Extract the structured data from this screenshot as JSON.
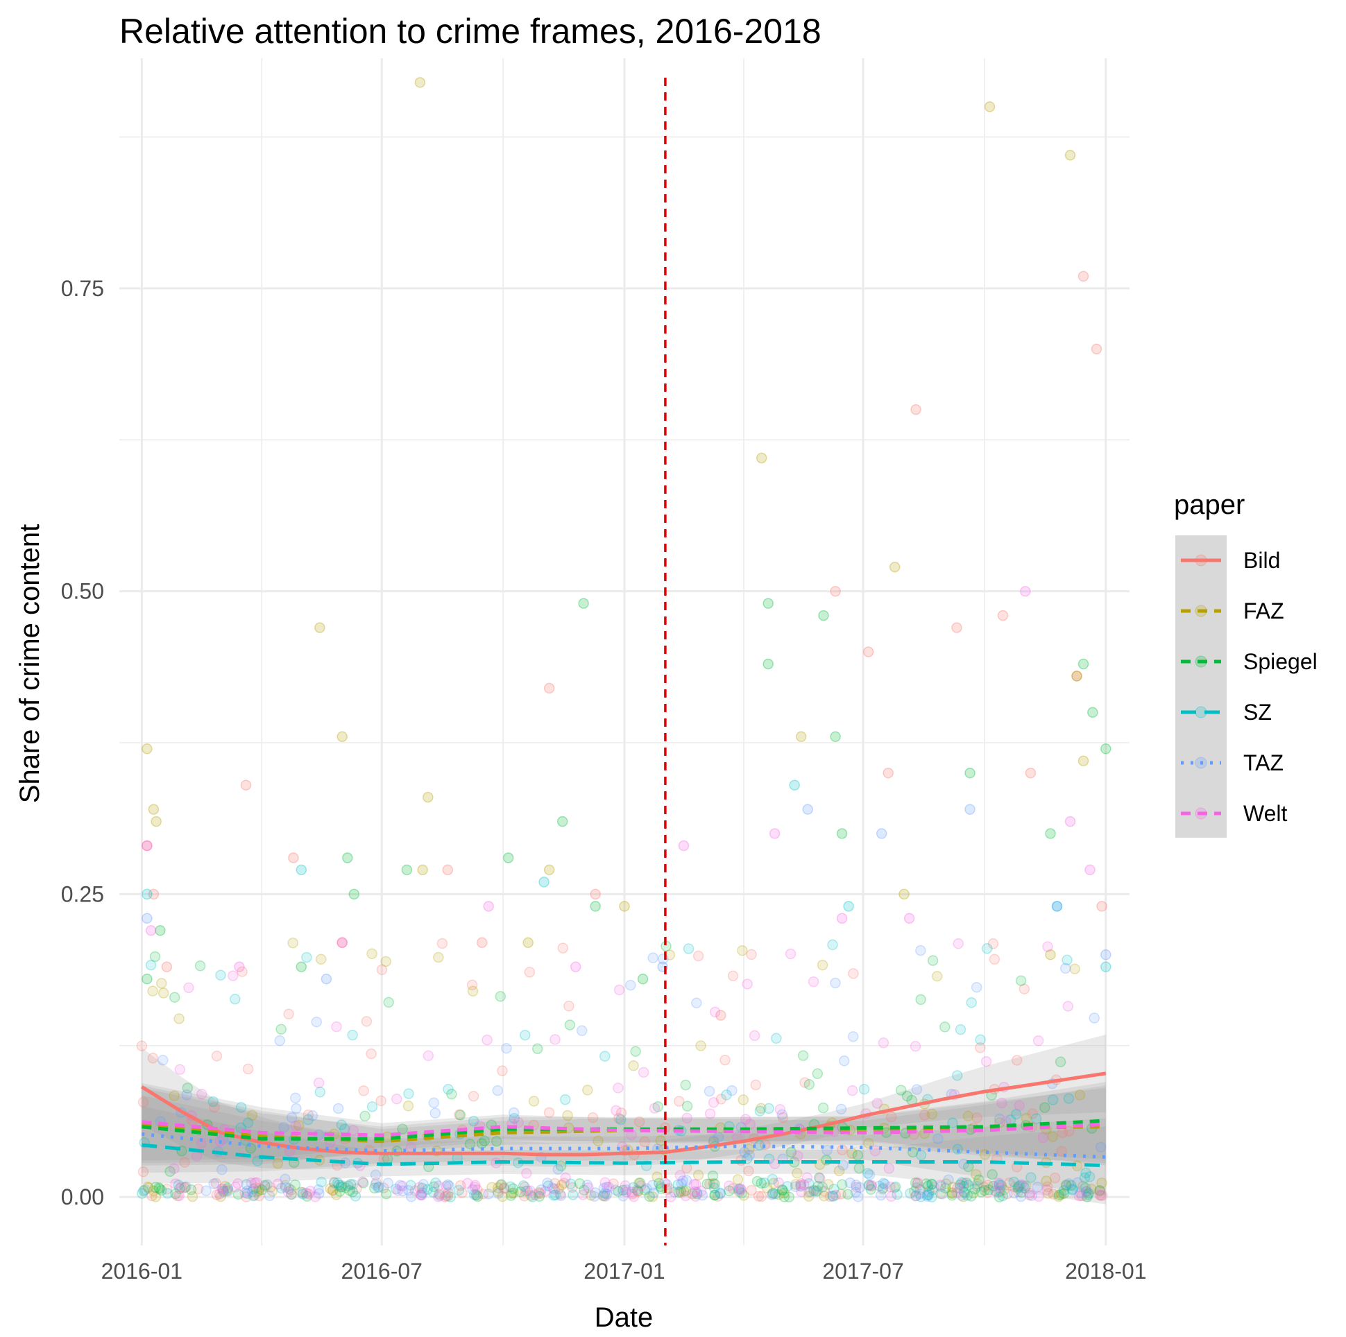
{
  "chart_data": {
    "type": "scatter",
    "title": "Relative attention to crime frames, 2016-2018",
    "xlabel": "Date",
    "ylabel": "Share of crime content",
    "x_ticks": [
      "2016-01",
      "2016-07",
      "2017-01",
      "2017-07",
      "2018-01"
    ],
    "x_range": [
      "2015-12-15",
      "2018-01-19"
    ],
    "y_ticks": [
      "0.00",
      "0.25",
      "0.50",
      "0.75"
    ],
    "y_range": [
      -0.04,
      0.94
    ],
    "grid": true,
    "reference_line": {
      "x": "2017-02-01",
      "color": "#e00000",
      "style": "dashed"
    },
    "legend": {
      "title": "paper",
      "placement": "right"
    },
    "series": [
      {
        "name": "Bild",
        "color": "#f8766d",
        "linetype": "solid",
        "trend": [
          [
            "2016-01-01",
            0.091
          ],
          [
            "2016-02-01",
            0.07
          ],
          [
            "2016-03-01",
            0.053
          ],
          [
            "2016-04-01",
            0.045
          ],
          [
            "2016-05-01",
            0.04
          ],
          [
            "2016-06-01",
            0.037
          ],
          [
            "2016-07-01",
            0.036
          ],
          [
            "2016-08-01",
            0.036
          ],
          [
            "2016-09-01",
            0.036
          ],
          [
            "2016-10-01",
            0.036
          ],
          [
            "2016-11-01",
            0.035
          ],
          [
            "2016-12-01",
            0.035
          ],
          [
            "2017-01-01",
            0.036
          ],
          [
            "2017-02-01",
            0.037
          ],
          [
            "2017-03-01",
            0.041
          ],
          [
            "2017-04-01",
            0.046
          ],
          [
            "2017-05-01",
            0.052
          ],
          [
            "2017-06-01",
            0.059
          ],
          [
            "2017-07-01",
            0.067
          ],
          [
            "2017-08-01",
            0.074
          ],
          [
            "2017-09-01",
            0.081
          ],
          [
            "2017-10-01",
            0.087
          ],
          [
            "2017-11-01",
            0.092
          ],
          [
            "2017-12-01",
            0.097
          ],
          [
            "2018-01-01",
            0.102
          ]
        ],
        "points": [
          [
            "2016-01-05",
            0.29
          ],
          [
            "2016-01-10",
            0.25
          ],
          [
            "2016-01-20",
            0.19
          ],
          [
            "2016-03-20",
            0.34
          ],
          [
            "2016-04-25",
            0.28
          ],
          [
            "2016-06-01",
            0.21
          ],
          [
            "2016-08-20",
            0.27
          ],
          [
            "2016-09-15",
            0.21
          ],
          [
            "2016-11-05",
            0.42
          ],
          [
            "2016-12-10",
            0.25
          ],
          [
            "2017-03-15",
            0.15
          ],
          [
            "2017-06-10",
            0.5
          ],
          [
            "2017-07-05",
            0.45
          ],
          [
            "2017-07-20",
            0.35
          ],
          [
            "2017-08-10",
            0.65
          ],
          [
            "2017-09-10",
            0.47
          ],
          [
            "2017-10-15",
            0.48
          ],
          [
            "2017-11-05",
            0.35
          ],
          [
            "2017-12-10",
            0.43
          ],
          [
            "2017-12-15",
            0.76
          ],
          [
            "2017-12-25",
            0.7
          ],
          [
            "2017-12-29",
            0.24
          ]
        ]
      },
      {
        "name": "FAZ",
        "color": "#b79f00",
        "linetype": "dashed",
        "trend": [
          [
            "2016-01-01",
            0.06
          ],
          [
            "2016-04-01",
            0.05
          ],
          [
            "2016-07-01",
            0.046
          ],
          [
            "2016-10-01",
            0.053
          ],
          [
            "2017-01-01",
            0.055
          ],
          [
            "2017-04-01",
            0.056
          ],
          [
            "2017-07-01",
            0.056
          ],
          [
            "2017-10-01",
            0.057
          ],
          [
            "2018-01-01",
            0.058
          ]
        ],
        "points": [
          [
            "2016-01-05",
            0.37
          ],
          [
            "2016-01-10",
            0.32
          ],
          [
            "2016-01-12",
            0.31
          ],
          [
            "2016-06-01",
            0.38
          ],
          [
            "2016-05-15",
            0.47
          ],
          [
            "2016-07-30",
            0.92
          ],
          [
            "2016-08-05",
            0.33
          ],
          [
            "2016-08-01",
            0.27
          ],
          [
            "2016-10-20",
            0.21
          ],
          [
            "2016-11-05",
            0.27
          ],
          [
            "2017-01-01",
            0.24
          ],
          [
            "2017-04-15",
            0.61
          ],
          [
            "2017-05-15",
            0.38
          ],
          [
            "2017-07-25",
            0.52
          ],
          [
            "2017-08-01",
            0.25
          ],
          [
            "2017-10-05",
            0.9
          ],
          [
            "2017-11-20",
            0.2
          ],
          [
            "2017-12-05",
            0.86
          ],
          [
            "2017-12-10",
            0.43
          ],
          [
            "2017-12-15",
            0.36
          ]
        ]
      },
      {
        "name": "Spiegel",
        "color": "#00ba38",
        "linetype": "dashed",
        "trend": [
          [
            "2016-01-01",
            0.058
          ],
          [
            "2016-04-01",
            0.048
          ],
          [
            "2016-07-01",
            0.048
          ],
          [
            "2016-10-01",
            0.056
          ],
          [
            "2017-01-01",
            0.056
          ],
          [
            "2017-04-01",
            0.056
          ],
          [
            "2017-07-01",
            0.057
          ],
          [
            "2017-10-01",
            0.058
          ],
          [
            "2018-01-01",
            0.063
          ]
        ],
        "points": [
          [
            "2016-01-05",
            0.18
          ],
          [
            "2016-01-15",
            0.22
          ],
          [
            "2016-05-01",
            0.19
          ],
          [
            "2016-06-05",
            0.28
          ],
          [
            "2016-06-10",
            0.25
          ],
          [
            "2016-07-20",
            0.27
          ],
          [
            "2016-10-05",
            0.28
          ],
          [
            "2016-11-15",
            0.31
          ],
          [
            "2016-12-01",
            0.49
          ],
          [
            "2016-12-10",
            0.24
          ],
          [
            "2017-01-15",
            0.18
          ],
          [
            "2017-04-20",
            0.49
          ],
          [
            "2017-04-20",
            0.44
          ],
          [
            "2017-06-01",
            0.48
          ],
          [
            "2017-06-10",
            0.38
          ],
          [
            "2017-06-15",
            0.3
          ],
          [
            "2017-09-20",
            0.35
          ],
          [
            "2017-11-20",
            0.3
          ],
          [
            "2017-12-15",
            0.44
          ],
          [
            "2017-12-22",
            0.4
          ],
          [
            "2018-01-01",
            0.37
          ]
        ]
      },
      {
        "name": "SZ",
        "color": "#00bfc4",
        "linetype": "longdash",
        "trend": [
          [
            "2016-01-01",
            0.043
          ],
          [
            "2016-04-01",
            0.033
          ],
          [
            "2016-07-01",
            0.027
          ],
          [
            "2016-10-01",
            0.029
          ],
          [
            "2017-01-01",
            0.028
          ],
          [
            "2017-04-01",
            0.029
          ],
          [
            "2017-07-01",
            0.029
          ],
          [
            "2017-10-01",
            0.029
          ],
          [
            "2018-01-01",
            0.026
          ]
        ],
        "points": [
          [
            "2016-01-05",
            0.25
          ],
          [
            "2016-05-01",
            0.27
          ],
          [
            "2016-11-01",
            0.26
          ],
          [
            "2017-05-10",
            0.34
          ],
          [
            "2017-06-20",
            0.24
          ],
          [
            "2017-11-25",
            0.24
          ],
          [
            "2018-01-01",
            0.19
          ]
        ]
      },
      {
        "name": "TAZ",
        "color": "#619cff",
        "linetype": "dotted",
        "trend": [
          [
            "2016-01-01",
            0.052
          ],
          [
            "2016-04-01",
            0.042
          ],
          [
            "2016-07-01",
            0.038
          ],
          [
            "2016-10-01",
            0.04
          ],
          [
            "2017-01-01",
            0.04
          ],
          [
            "2017-04-01",
            0.042
          ],
          [
            "2017-07-01",
            0.041
          ],
          [
            "2017-10-01",
            0.037
          ],
          [
            "2018-01-01",
            0.033
          ]
        ],
        "points": [
          [
            "2016-01-05",
            0.23
          ],
          [
            "2016-05-20",
            0.18
          ],
          [
            "2017-01-30",
            0.19
          ],
          [
            "2017-05-20",
            0.32
          ],
          [
            "2017-07-15",
            0.3
          ],
          [
            "2017-09-20",
            0.32
          ],
          [
            "2017-11-25",
            0.24
          ],
          [
            "2018-01-01",
            0.2
          ]
        ]
      },
      {
        "name": "Welt",
        "color": "#f564e3",
        "linetype": "dashed",
        "trend": [
          [
            "2016-01-01",
            0.062
          ],
          [
            "2016-04-01",
            0.053
          ],
          [
            "2016-07-01",
            0.051
          ],
          [
            "2016-10-01",
            0.058
          ],
          [
            "2017-01-01",
            0.055
          ],
          [
            "2017-04-01",
            0.054
          ],
          [
            "2017-07-01",
            0.053
          ],
          [
            "2017-10-01",
            0.055
          ],
          [
            "2018-01-01",
            0.06
          ]
        ],
        "points": [
          [
            "2016-01-05",
            0.29
          ],
          [
            "2016-01-08",
            0.22
          ],
          [
            "2016-03-15",
            0.19
          ],
          [
            "2016-06-01",
            0.21
          ],
          [
            "2016-09-20",
            0.24
          ],
          [
            "2016-11-25",
            0.19
          ],
          [
            "2017-02-15",
            0.29
          ],
          [
            "2017-04-25",
            0.3
          ],
          [
            "2017-06-15",
            0.23
          ],
          [
            "2017-08-05",
            0.23
          ],
          [
            "2017-11-01",
            0.5
          ],
          [
            "2017-12-05",
            0.31
          ],
          [
            "2017-12-20",
            0.27
          ]
        ]
      }
    ]
  }
}
